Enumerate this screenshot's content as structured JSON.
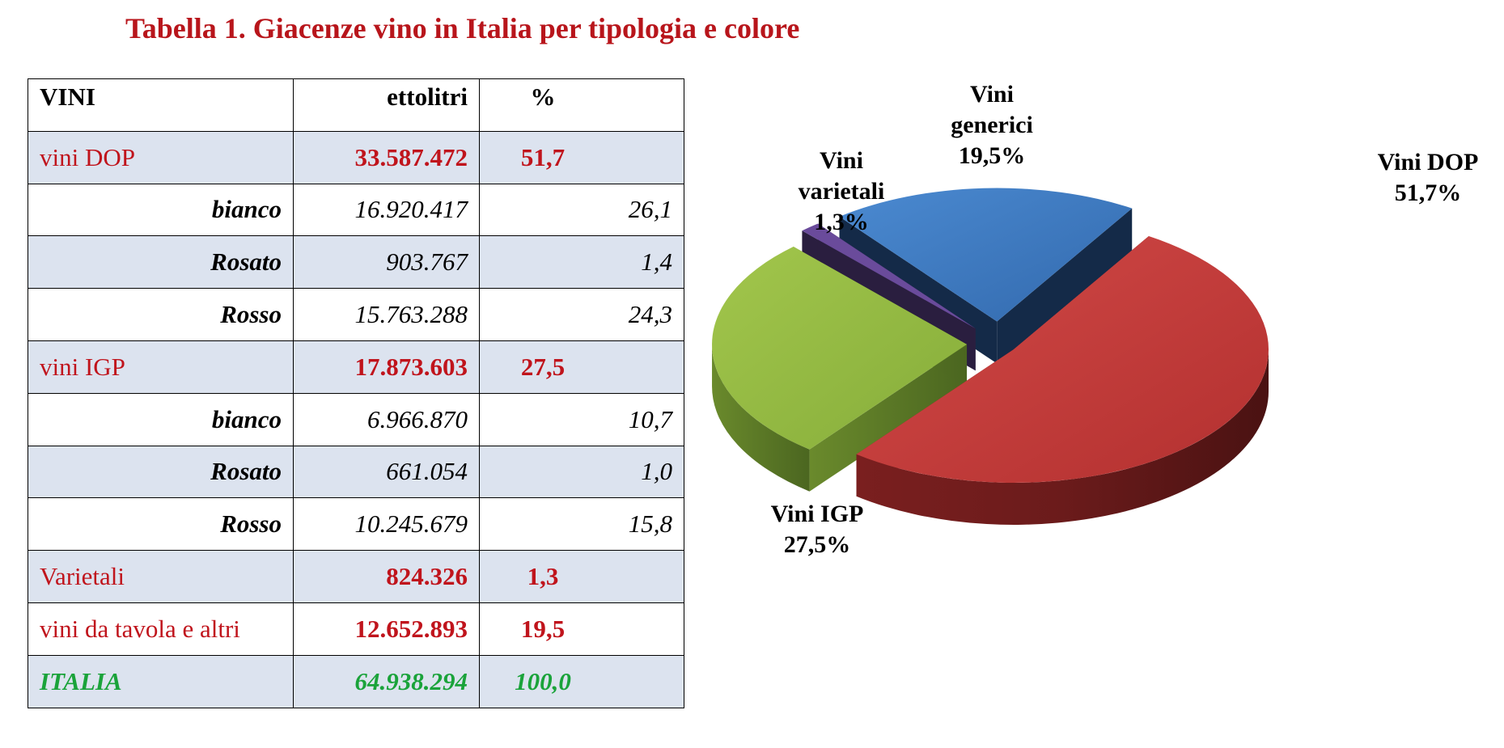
{
  "title": "Tabella 1. Giacenze vino in Italia per tipologia e colore",
  "table": {
    "headers": [
      "VINI",
      "ettolitri",
      "%"
    ],
    "rows": [
      {
        "label": "vini DOP",
        "ettolitri": "33.587.472",
        "pct": "51,7",
        "kind": "cat",
        "shade": true
      },
      {
        "label": "bianco",
        "ettolitri": "16.920.417",
        "pct": "26,1",
        "kind": "sub",
        "shade": false
      },
      {
        "label": "Rosato",
        "ettolitri": "903.767",
        "pct": "1,4",
        "kind": "sub",
        "shade": true
      },
      {
        "label": "Rosso",
        "ettolitri": "15.763.288",
        "pct": "24,3",
        "kind": "sub",
        "shade": false
      },
      {
        "label": "vini IGP",
        "ettolitri": "17.873.603",
        "pct": "27,5",
        "kind": "cat",
        "shade": true
      },
      {
        "label": "bianco",
        "ettolitri": "6.966.870",
        "pct": "10,7",
        "kind": "sub",
        "shade": false
      },
      {
        "label": "Rosato",
        "ettolitri": "661.054",
        "pct": "1,0",
        "kind": "sub",
        "shade": true
      },
      {
        "label": "Rosso",
        "ettolitri": "10.245.679",
        "pct": "15,8",
        "kind": "sub",
        "shade": false
      },
      {
        "label": "Varietali",
        "ettolitri": "824.326",
        "pct": "1,3",
        "kind": "cat",
        "shade": true
      },
      {
        "label": "vini da tavola e altri",
        "ettolitri": "12.652.893",
        "pct": "19,5",
        "kind": "cat",
        "shade": false
      },
      {
        "label": "ITALIA",
        "ettolitri": "64.938.294",
        "pct": "100,0",
        "kind": "total",
        "shade": true
      }
    ]
  },
  "colors": {
    "title": "#b8151b",
    "category_text": "#c0141c",
    "total_text": "#1aa33a",
    "row_shade": "#dce3ef"
  },
  "chart_data": {
    "type": "pie",
    "style": "3d exploded",
    "categories": [
      "Vini DOP",
      "Vini IGP",
      "Vini varietali",
      "Vini generici"
    ],
    "values": [
      51.7,
      27.5,
      1.3,
      19.5
    ],
    "labels": [
      [
        "Vini DOP",
        "51,7%"
      ],
      [
        "Vini IGP",
        "27,5%"
      ],
      [
        "Vini",
        "varietali",
        "1,3%"
      ],
      [
        "Vini",
        "generici",
        "19,5%"
      ]
    ],
    "colors": [
      "#c0393b",
      "#8fb83e",
      "#6a4b9b",
      "#3b78c2"
    ],
    "legend": "none"
  }
}
